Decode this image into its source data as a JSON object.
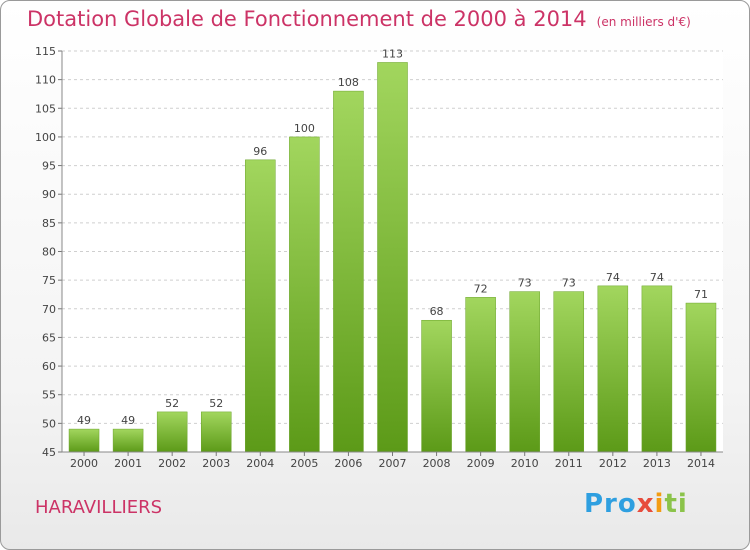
{
  "header": {
    "title": "Dotation Globale de Fonctionnement de 2000 à 2014",
    "subtitle": "(en milliers d'€)"
  },
  "commune": "HARAVILLIERS",
  "logo": {
    "text": "Proxiti",
    "p1": "Pro",
    "x": "x",
    "i": "i",
    "ti": "ti"
  },
  "colors": {
    "bar_light": "#9fd35a",
    "bar_dark": "#5f9e1a",
    "title": "#cc3366"
  },
  "chart_data": {
    "type": "bar",
    "title": "Dotation Globale de Fonctionnement de 2000 à 2014",
    "xlabel": "",
    "ylabel": "",
    "ylim": [
      45,
      115
    ],
    "yticks": [
      45,
      50,
      55,
      60,
      65,
      70,
      75,
      80,
      85,
      90,
      95,
      100,
      105,
      110,
      115
    ],
    "categories": [
      "2000",
      "2001",
      "2002",
      "2003",
      "2004",
      "2005",
      "2006",
      "2007",
      "2008",
      "2009",
      "2010",
      "2011",
      "2012",
      "2013",
      "2014"
    ],
    "values": [
      49,
      49,
      52,
      52,
      96,
      100,
      108,
      113,
      68,
      72,
      73,
      73,
      74,
      74,
      71
    ]
  }
}
